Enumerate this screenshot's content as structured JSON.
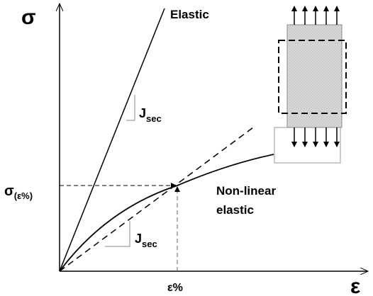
{
  "labels": {
    "y_axis": "σ",
    "x_axis": "ε",
    "elastic": "Elastic",
    "secant_upper": {
      "main": "J",
      "sub": "sec"
    },
    "secant_lower": {
      "main": "J",
      "sub": "sec"
    },
    "stress_level": {
      "main": "σ",
      "sub": "(ε%)"
    },
    "strain_level": "ε%",
    "nonlinear": [
      "Non-linear",
      "elastic"
    ]
  }
}
